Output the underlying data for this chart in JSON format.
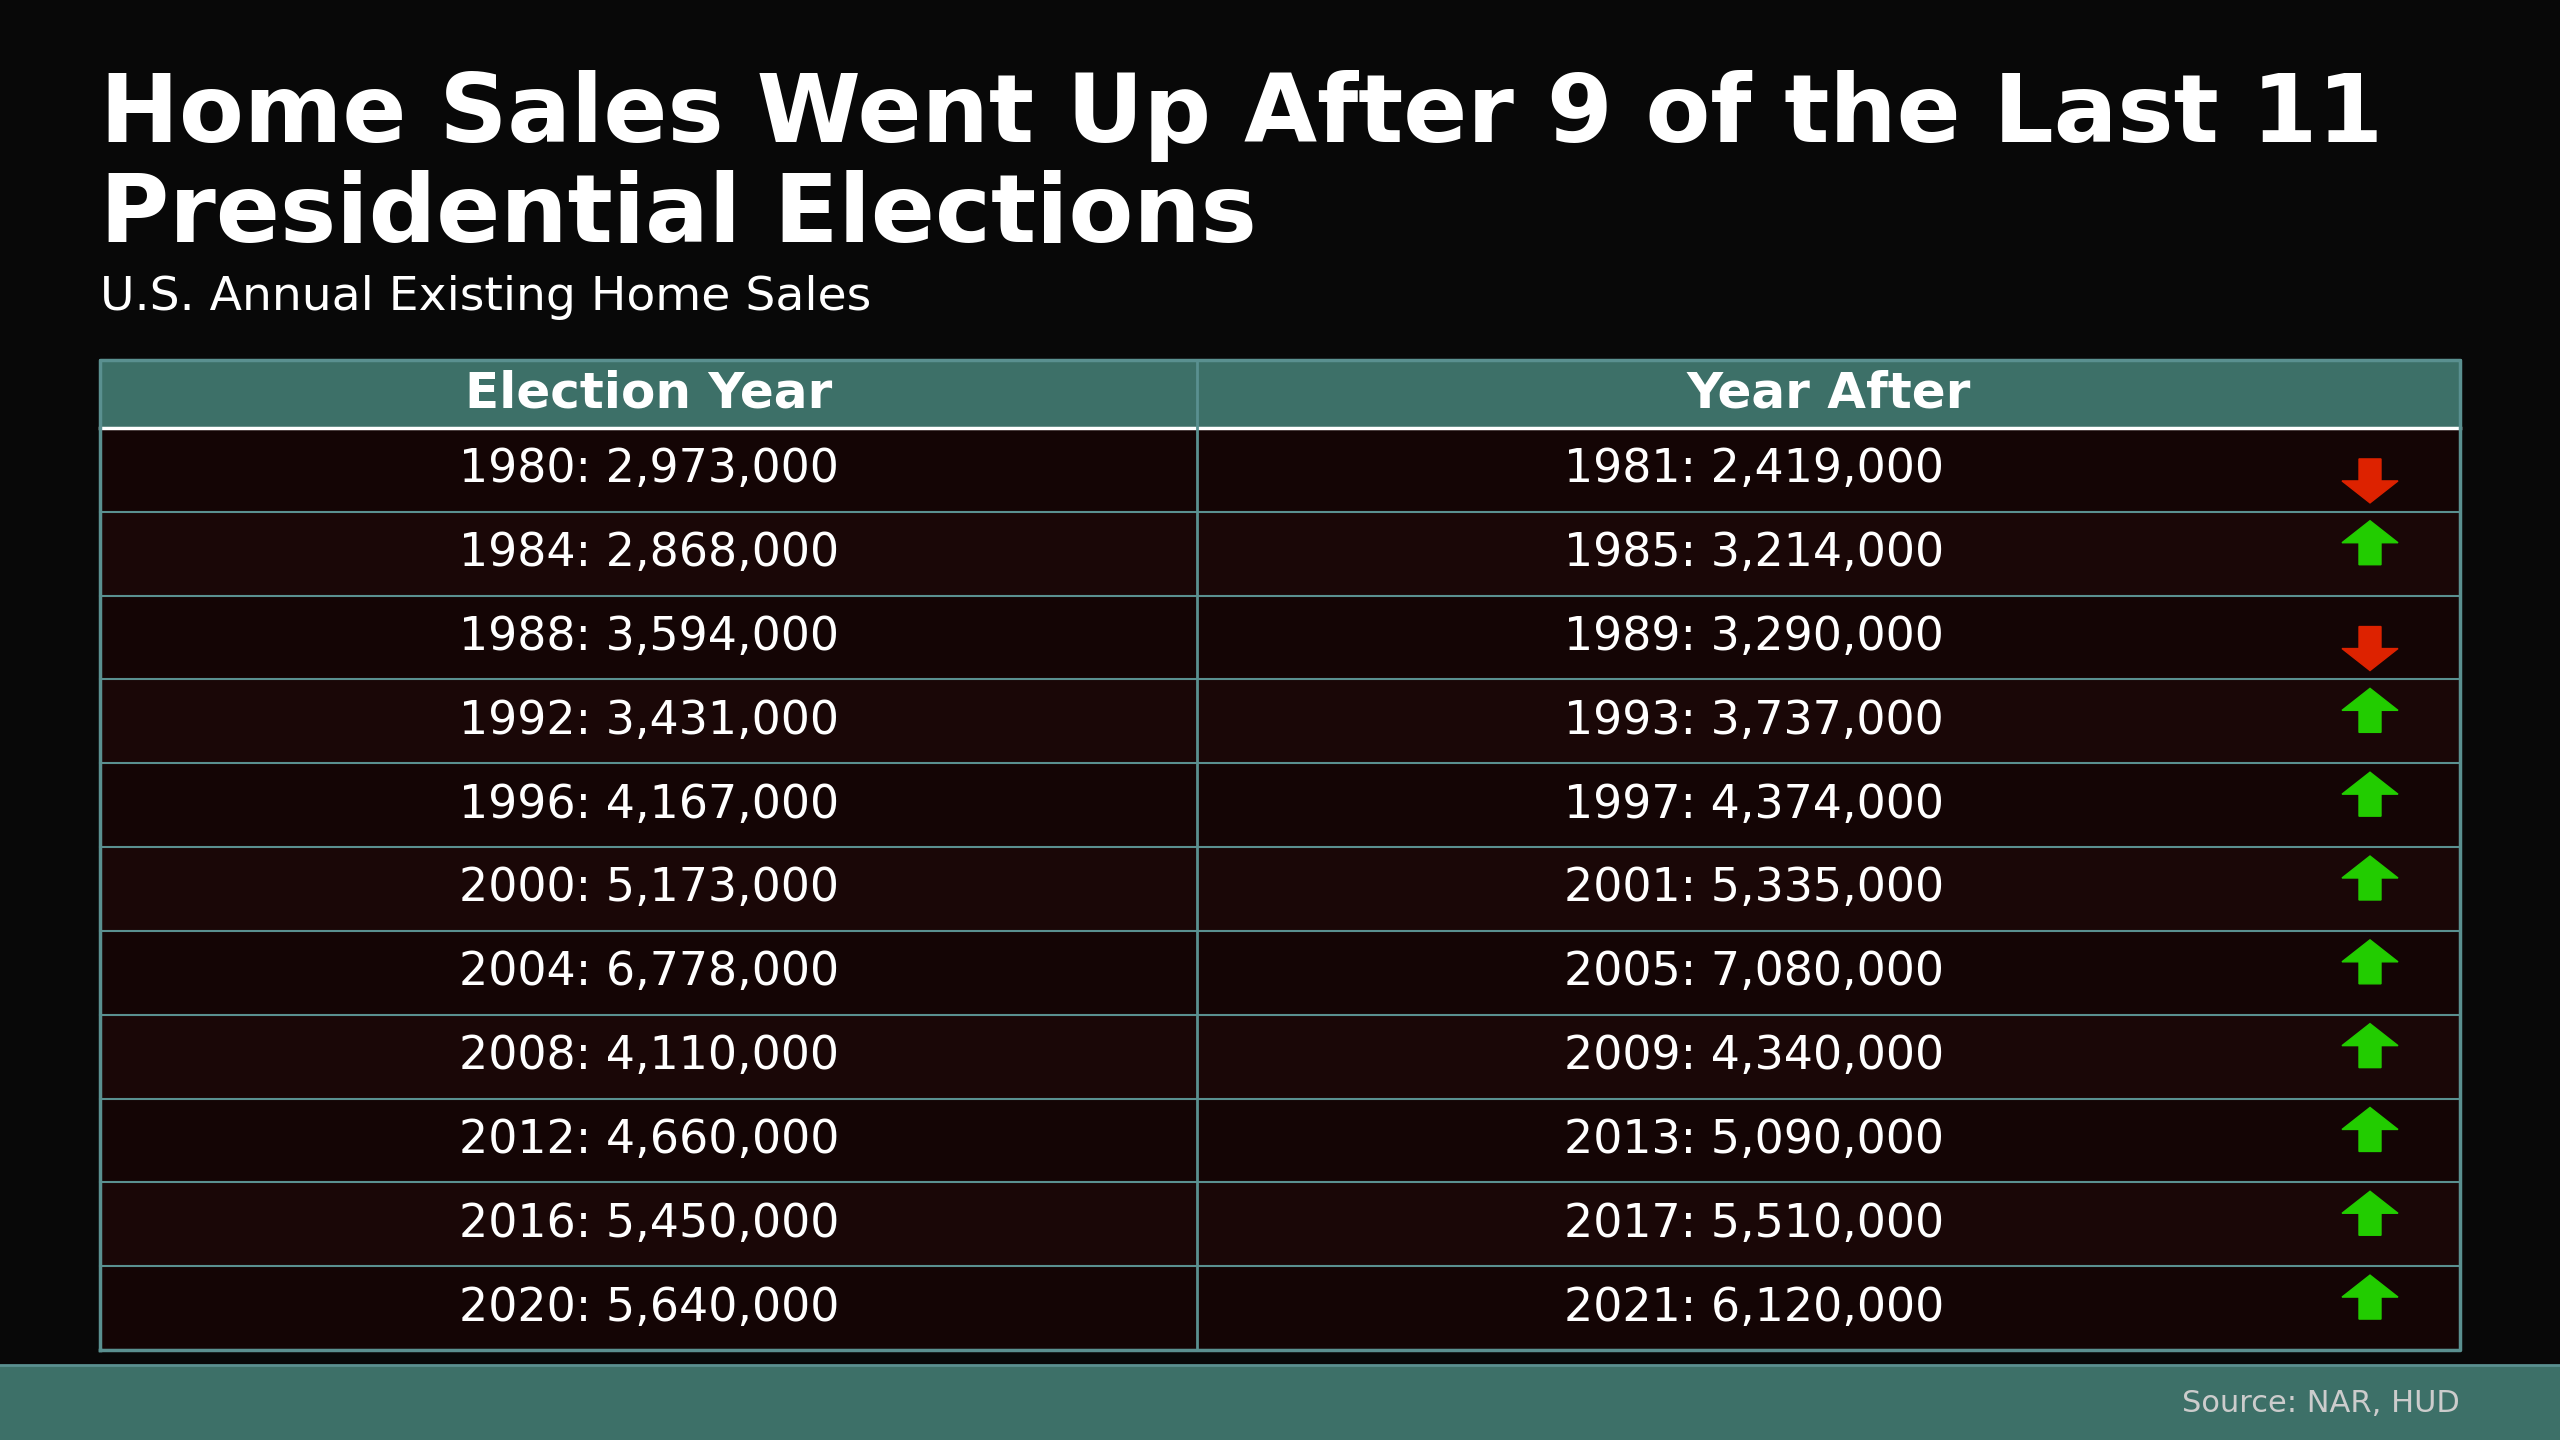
{
  "title_line1": "Home Sales Went Up After 9 of the Last 11",
  "title_line2": "Presidential Elections",
  "subtitle": "U.S. Annual Existing Home Sales",
  "source": "Source: NAR, HUD",
  "header_left": "Election Year",
  "header_right": "Year After",
  "rows": [
    {
      "election": "1980: 2,973,000",
      "after": "1981: 2,419,000",
      "up": false
    },
    {
      "election": "1984: 2,868,000",
      "after": "1985: 3,214,000",
      "up": true
    },
    {
      "election": "1988: 3,594,000",
      "after": "1989: 3,290,000",
      "up": false
    },
    {
      "election": "1992: 3,431,000",
      "after": "1993: 3,737,000",
      "up": true
    },
    {
      "election": "1996: 4,167,000",
      "after": "1997: 4,374,000",
      "up": true
    },
    {
      "election": "2000: 5,173,000",
      "after": "2001: 5,335,000",
      "up": true
    },
    {
      "election": "2004: 6,778,000",
      "after": "2005: 7,080,000",
      "up": true
    },
    {
      "election": "2008: 4,110,000",
      "after": "2009: 4,340,000",
      "up": true
    },
    {
      "election": "2012: 4,660,000",
      "after": "2013: 5,090,000",
      "up": true
    },
    {
      "election": "2016: 5,450,000",
      "after": "2017: 5,510,000",
      "up": true
    },
    {
      "election": "2020: 5,640,000",
      "after": "2021: 6,120,000",
      "up": true
    }
  ],
  "bg_color": "#080808",
  "header_bg": "#3d7068",
  "row_bg": "#150606",
  "border_color": "#5a9090",
  "text_color": "#ffffff",
  "title_color": "#ffffff",
  "subtitle_color": "#ffffff",
  "up_color": "#22cc00",
  "down_color": "#dd2200",
  "source_color": "#cccccc",
  "footer_color": "#3d7068"
}
